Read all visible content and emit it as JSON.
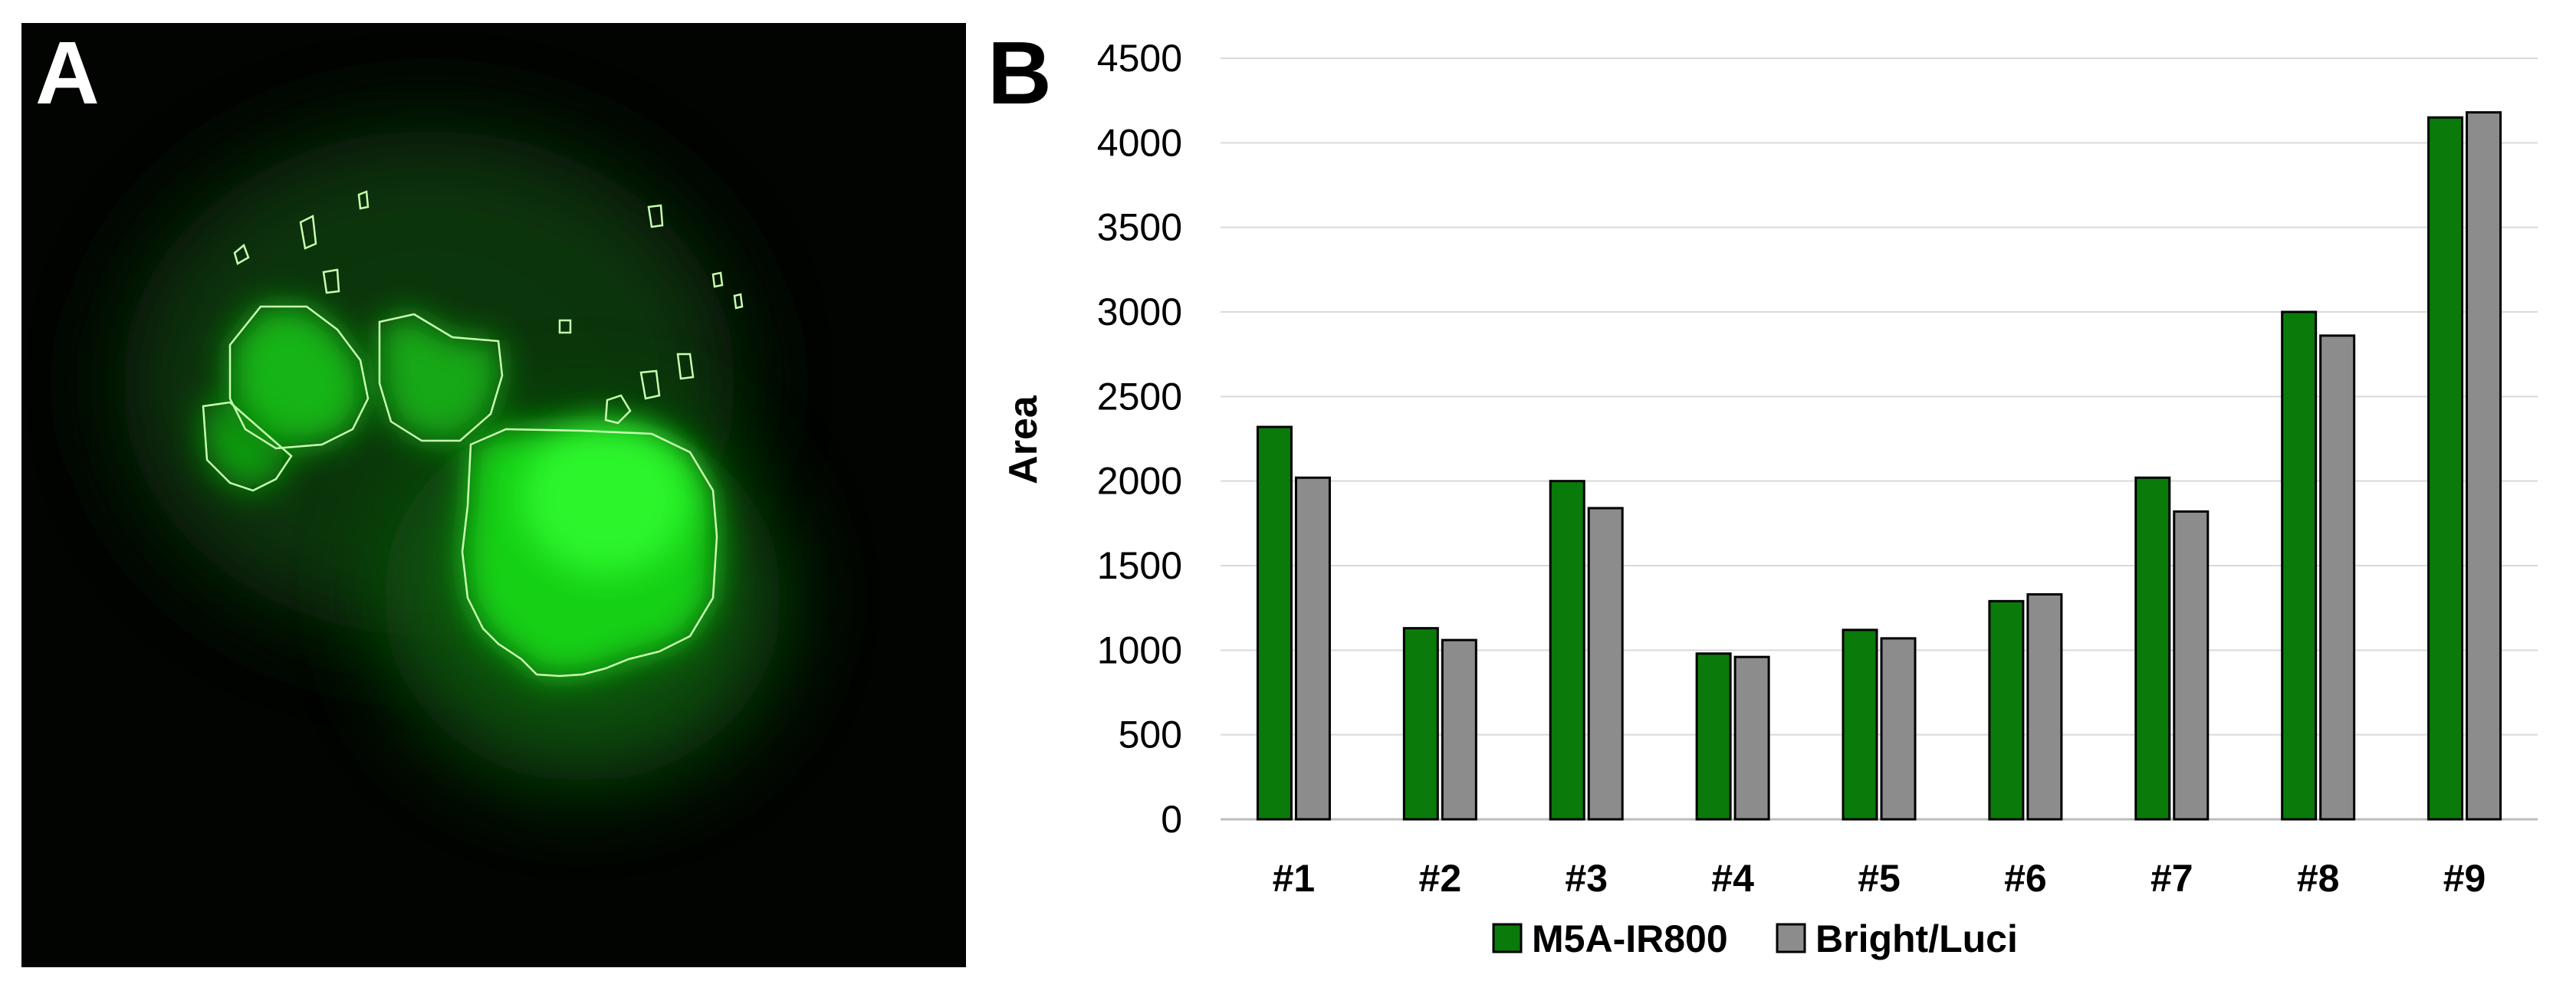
{
  "panel_a": {
    "label": "A",
    "colors": {
      "background": "#020402",
      "glow": "#1aff1a",
      "outline": "#c8ffb0"
    }
  },
  "panel_b": {
    "label": "B",
    "chart_data": {
      "type": "bar",
      "title": "",
      "xlabel": "",
      "ylabel": "Area",
      "ylim": [
        0,
        4500
      ],
      "yticks": [
        0,
        500,
        1000,
        1500,
        2000,
        2500,
        3000,
        3500,
        4000,
        4500
      ],
      "categories": [
        "#1",
        "#2",
        "#3",
        "#4",
        "#5",
        "#6",
        "#7",
        "#8",
        "#9"
      ],
      "series": [
        {
          "name": "M5A-IR800",
          "color": "#0a7a0a",
          "values": [
            2320,
            1130,
            2000,
            980,
            1120,
            1290,
            2020,
            3000,
            4150
          ]
        },
        {
          "name": "Bright/Luci",
          "color": "#8c8c8c",
          "values": [
            2020,
            1060,
            1840,
            960,
            1070,
            1330,
            1820,
            2860,
            4180
          ]
        }
      ],
      "grid": true,
      "legend_position": "bottom"
    }
  }
}
